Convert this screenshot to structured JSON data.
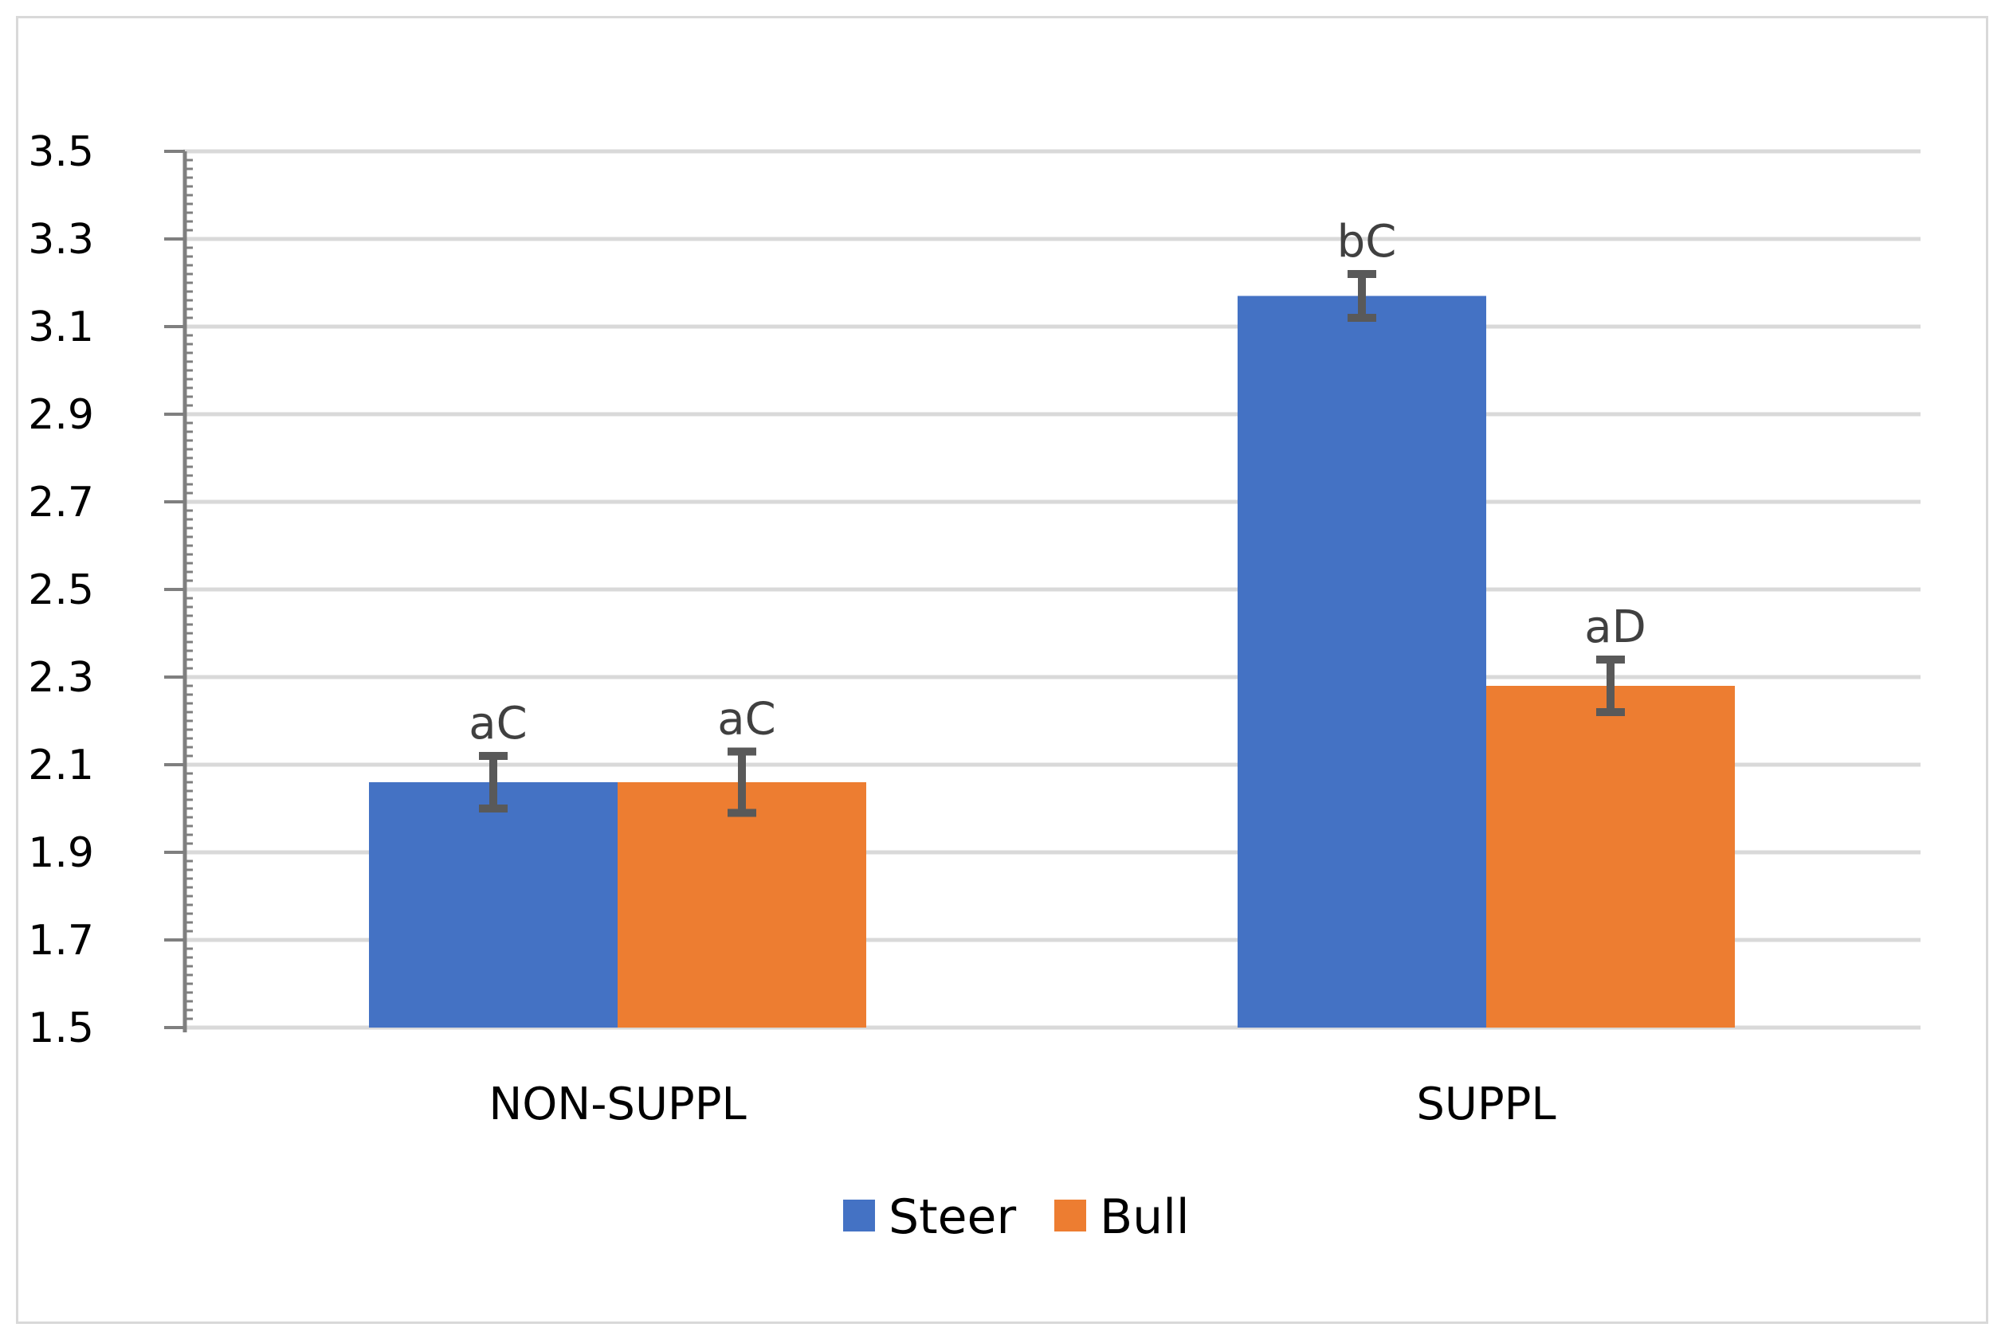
{
  "chart_data": {
    "type": "bar",
    "title": "",
    "xlabel": "",
    "ylabel": "",
    "categories": [
      "NON-SUPPL",
      "SUPPL"
    ],
    "series": [
      {
        "name": "Steer",
        "color": "#4472c4",
        "values": [
          2.06,
          3.17
        ],
        "errors": [
          0.06,
          0.05
        ],
        "labels": [
          "aC",
          "bC"
        ]
      },
      {
        "name": "Bull",
        "color": "#ed7d31",
        "values": [
          2.06,
          2.28
        ],
        "errors": [
          0.07,
          0.06
        ],
        "labels": [
          "aC",
          "aD"
        ]
      }
    ],
    "ylim": [
      1.5,
      3.5
    ],
    "yticks": [
      "1.5",
      "1.7",
      "1.9",
      "2.1",
      "2.3",
      "2.5",
      "2.7",
      "2.9",
      "3.1",
      "3.3",
      "3.5"
    ],
    "grid": true,
    "legend_position": "bottom-center",
    "gridline_color": "#d9d9d9",
    "error_bar_color": "#595959",
    "axis_color": "#7f7f7f"
  }
}
